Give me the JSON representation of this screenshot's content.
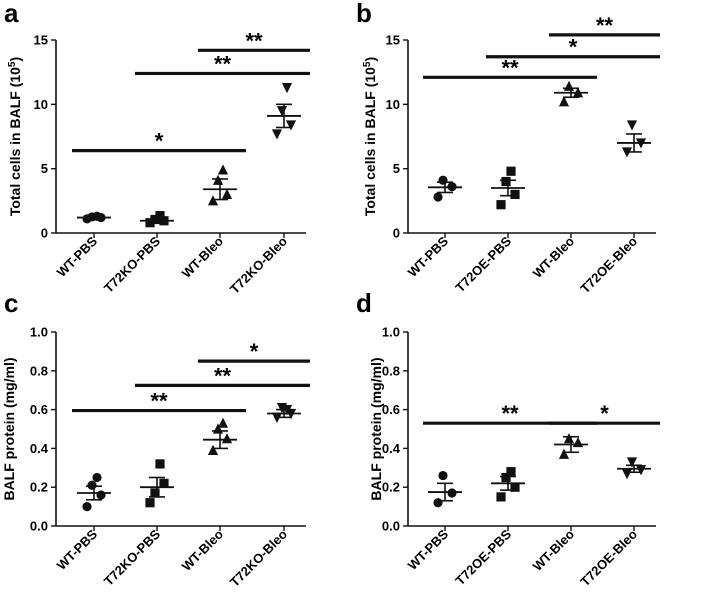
{
  "chart_data": [
    {
      "panel": "a",
      "type": "scatter",
      "ylabel": "Total cells in BALF (10",
      "ylabel_sup": "5",
      "ylabel_close": ")",
      "ylim": [
        0,
        15
      ],
      "yticks": [
        "0",
        "5",
        "10",
        "15"
      ],
      "categories": [
        "WT-PBS",
        "T72KO-PBS",
        "WT-Bleo",
        "T72KO-Bleo"
      ],
      "groups": [
        {
          "name": "WT-PBS",
          "marker": "circle",
          "points": [
            1.1,
            1.2,
            1.25,
            1.3
          ],
          "mean": 1.2,
          "sem": 0.08
        },
        {
          "name": "T72KO-PBS",
          "marker": "square",
          "points": [
            0.8,
            0.95,
            1.05,
            1.35
          ],
          "mean": 0.95,
          "sem": 0.1
        },
        {
          "name": "WT-Bleo",
          "marker": "triangle-up",
          "points": [
            2.5,
            3.0,
            4.1,
            4.9
          ],
          "mean": 3.4,
          "sem": 0.8
        },
        {
          "name": "T72KO-Bleo",
          "marker": "triangle-down",
          "points": [
            7.7,
            8.4,
            9.5,
            11.3
          ],
          "mean": 9.1,
          "sem": 0.9
        }
      ],
      "significance": [
        {
          "from": 0,
          "to": 2,
          "y": 6.4,
          "label": "*"
        },
        {
          "from": 1,
          "to": 3,
          "y": 12.4,
          "label": "**"
        },
        {
          "from": 2,
          "to": 3,
          "y": 14.2,
          "label": "**"
        }
      ]
    },
    {
      "panel": "b",
      "type": "scatter",
      "ylabel": "Total cells in BALF (10",
      "ylabel_sup": "5",
      "ylabel_close": ")",
      "ylim": [
        0,
        15
      ],
      "yticks": [
        "0",
        "5",
        "10",
        "15"
      ],
      "categories": [
        "WT-PBS",
        "T72OE-PBS",
        "WT-Bleo",
        "T72OE-Bleo"
      ],
      "groups": [
        {
          "name": "WT-PBS",
          "marker": "circle",
          "points": [
            2.8,
            3.6,
            4.1
          ],
          "mean": 3.55,
          "sem": 0.4
        },
        {
          "name": "T72OE-PBS",
          "marker": "square",
          "points": [
            2.2,
            3.0,
            4.0,
            4.8
          ],
          "mean": 3.5,
          "sem": 0.6
        },
        {
          "name": "WT-Bleo",
          "marker": "triangle-up",
          "points": [
            10.2,
            10.9,
            11.4
          ],
          "mean": 10.9,
          "sem": 0.35
        },
        {
          "name": "T72OE-Bleo",
          "marker": "triangle-down",
          "points": [
            6.3,
            7.0,
            8.4
          ],
          "mean": 7.0,
          "sem": 0.7
        }
      ],
      "significance": [
        {
          "from": 0,
          "to": 2,
          "y": 12.1,
          "label": "**"
        },
        {
          "from": 1,
          "to": 3,
          "y": 13.7,
          "label": "*"
        },
        {
          "from": 2,
          "to": 3,
          "y": 15.4,
          "label": "**"
        }
      ]
    },
    {
      "panel": "c",
      "type": "scatter",
      "ylabel": "BALF protein (mg/ml)",
      "ylim": [
        0,
        1.0
      ],
      "yticks": [
        "0.0",
        "0.2",
        "0.4",
        "0.6",
        "0.8",
        "1.0"
      ],
      "categories": [
        "WT-PBS",
        "T72KO-PBS",
        "WT-Bleo",
        "T72KO-Bleo"
      ],
      "groups": [
        {
          "name": "WT-PBS",
          "marker": "circle",
          "points": [
            0.1,
            0.16,
            0.21,
            0.25
          ],
          "mean": 0.17,
          "sem": 0.035
        },
        {
          "name": "T72KO-PBS",
          "marker": "square",
          "points": [
            0.12,
            0.22,
            0.17,
            0.32
          ],
          "mean": 0.2,
          "sem": 0.05
        },
        {
          "name": "WT-Bleo",
          "marker": "triangle-up",
          "points": [
            0.39,
            0.45,
            0.5,
            0.53
          ],
          "mean": 0.445,
          "sem": 0.045
        },
        {
          "name": "T72KO-Bleo",
          "marker": "triangle-down",
          "points": [
            0.56,
            0.58,
            0.61,
            0.6
          ],
          "mean": 0.58,
          "sem": 0.02
        }
      ],
      "significance": [
        {
          "from": 0,
          "to": 2,
          "y": 0.595,
          "label": "**"
        },
        {
          "from": 1,
          "to": 3,
          "y": 0.725,
          "label": "**"
        },
        {
          "from": 2,
          "to": 3,
          "y": 0.85,
          "label": "*"
        }
      ]
    },
    {
      "panel": "d",
      "type": "scatter",
      "ylabel": "BALF protein (mg/ml)",
      "ylim": [
        0,
        1.0
      ],
      "yticks": [
        "0.0",
        "0.2",
        "0.4",
        "0.6",
        "0.8",
        "1.0"
      ],
      "categories": [
        "WT-PBS",
        "T72OE-PBS",
        "WT-Bleo",
        "T72OE-Bleo"
      ],
      "groups": [
        {
          "name": "WT-PBS",
          "marker": "circle",
          "points": [
            0.12,
            0.17,
            0.26
          ],
          "mean": 0.175,
          "sem": 0.045
        },
        {
          "name": "T72OE-PBS",
          "marker": "square",
          "points": [
            0.15,
            0.2,
            0.25,
            0.28
          ],
          "mean": 0.22,
          "sem": 0.035
        },
        {
          "name": "WT-Bleo",
          "marker": "triangle-up",
          "points": [
            0.37,
            0.43,
            0.45
          ],
          "mean": 0.42,
          "sem": 0.04
        },
        {
          "name": "T72OE-Bleo",
          "marker": "triangle-down",
          "points": [
            0.27,
            0.29,
            0.33
          ],
          "mean": 0.295,
          "sem": 0.018
        }
      ],
      "significance": [
        {
          "from": 0,
          "to": 2,
          "y": 0.53,
          "label": "**"
        },
        {
          "from": 2,
          "to": 3,
          "y": 0.53,
          "label": "*"
        }
      ]
    }
  ]
}
